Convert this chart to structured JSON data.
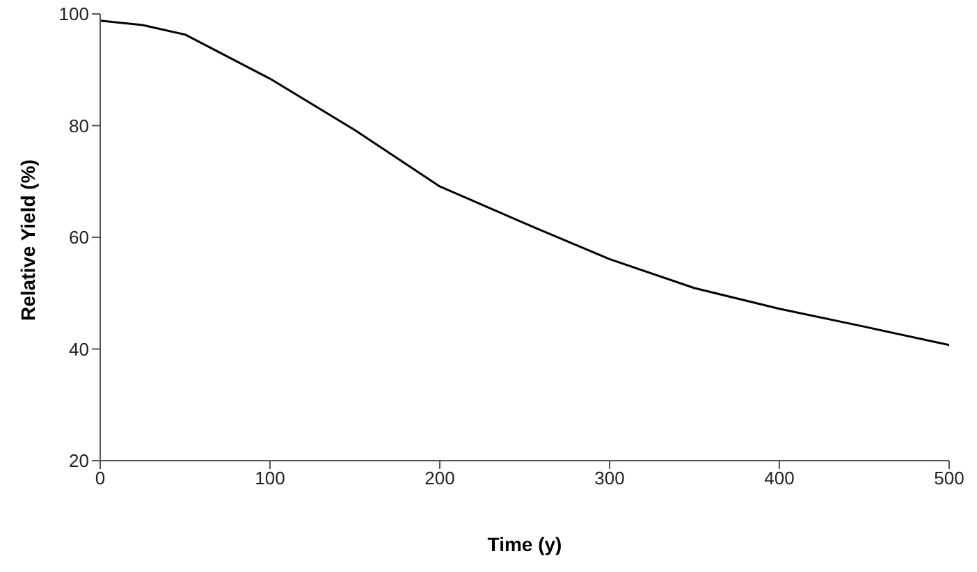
{
  "chart_data": {
    "type": "line",
    "xlabel": "Time (y)",
    "ylabel": "Relative Yield (%)",
    "x": [
      0,
      25,
      50,
      100,
      150,
      200,
      250,
      300,
      350,
      400,
      450,
      500
    ],
    "series": [
      {
        "color": "#000000",
        "values": [
          98.8,
          98,
          96.3,
          88.4,
          79.2,
          69.1,
          62.5,
          56.1,
          50.9,
          47.2,
          44,
          40.7
        ]
      }
    ],
    "xlim": [
      0,
      500
    ],
    "xticks": [
      0,
      100,
      200,
      300,
      400,
      500
    ],
    "ylim": [
      20,
      100
    ],
    "yticks": [
      20,
      40,
      60,
      80,
      100
    ],
    "grid": false,
    "legend": false,
    "marker": "none",
    "line_style": "solid"
  }
}
